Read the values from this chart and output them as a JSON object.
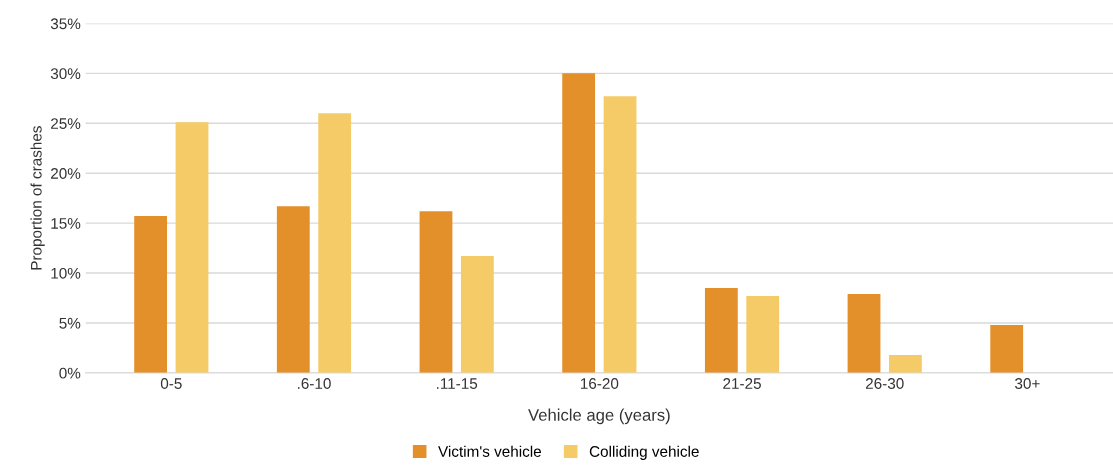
{
  "chart_data": {
    "type": "bar",
    "xlabel": "Vehicle age (years)",
    "ylabel": "Proportion of crashes",
    "categories": [
      "0-5",
      ".6-10",
      ".11-15",
      "16-20",
      "21-25",
      "26-30",
      "30+"
    ],
    "series": [
      {
        "name": "Victim's vehicle",
        "color": "#e38f2a",
        "values": [
          15.7,
          16.7,
          16.2,
          30.0,
          8.5,
          7.9,
          4.8
        ]
      },
      {
        "name": "Colliding vehicle",
        "color": "#f5cb67",
        "values": [
          25.1,
          26.0,
          11.7,
          27.7,
          7.7,
          1.8,
          null
        ]
      }
    ],
    "ylim": [
      0,
      35
    ],
    "yticks": [
      {
        "value": 0,
        "label": "0%"
      },
      {
        "value": 5,
        "label": "5%"
      },
      {
        "value": 10,
        "label": "10%"
      },
      {
        "value": 15,
        "label": "15%"
      },
      {
        "value": 20,
        "label": "20%"
      },
      {
        "value": 25,
        "label": "25%"
      },
      {
        "value": 30,
        "label": "30%"
      },
      {
        "value": 35,
        "label": "35%"
      }
    ],
    "grid": "y",
    "legend": "bottom"
  }
}
